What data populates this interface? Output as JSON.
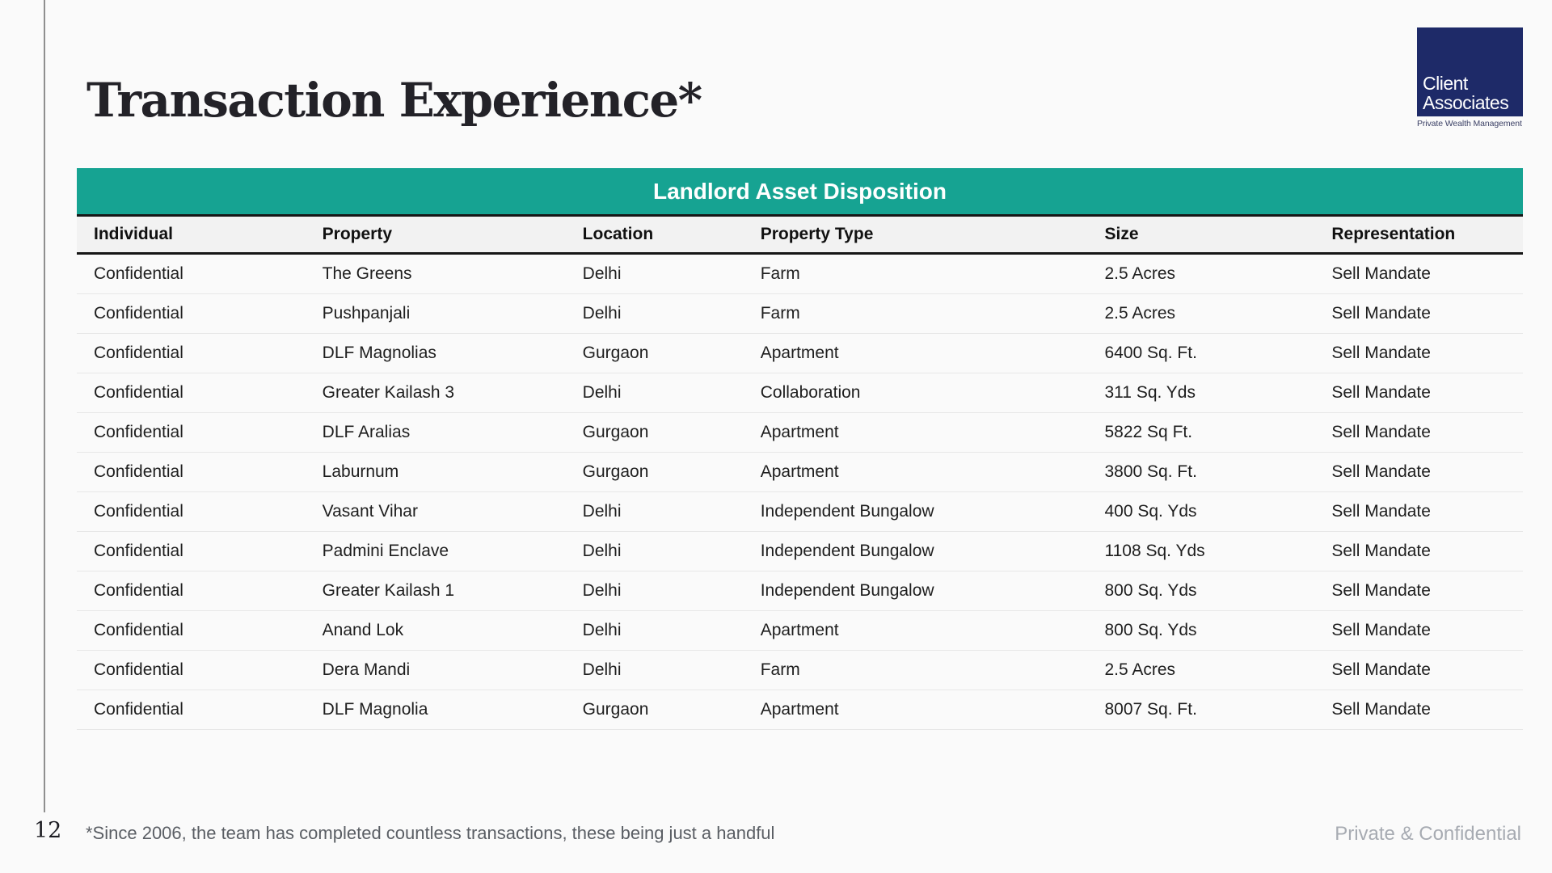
{
  "page": {
    "title": "Transaction Experience*",
    "page_number": "12",
    "footnote": "*Since 2006, the team has completed countless transactions, these being just a handful",
    "confidentiality": "Private & Confidential"
  },
  "logo": {
    "line1": "Client",
    "line2": "Associates",
    "tagline": "Private Wealth Management",
    "bg_color": "#1e2a68"
  },
  "table": {
    "title": "Landlord Asset Disposition",
    "title_bg_color": "#16a392",
    "columns": [
      "Individual",
      "Property",
      "Location",
      "Property Type",
      "Size",
      "Representation"
    ],
    "rows": [
      [
        "Confidential",
        "The Greens",
        "Delhi",
        "Farm",
        "2.5 Acres",
        "Sell Mandate"
      ],
      [
        "Confidential",
        "Pushpanjali",
        "Delhi",
        "Farm",
        "2.5 Acres",
        "Sell Mandate"
      ],
      [
        "Confidential",
        "DLF Magnolias",
        "Gurgaon",
        "Apartment",
        "6400 Sq. Ft.",
        "Sell Mandate"
      ],
      [
        "Confidential",
        "Greater Kailash 3",
        "Delhi",
        "Collaboration",
        "311 Sq. Yds",
        "Sell Mandate"
      ],
      [
        "Confidential",
        "DLF Aralias",
        "Gurgaon",
        "Apartment",
        "5822 Sq Ft.",
        "Sell Mandate"
      ],
      [
        "Confidential",
        "Laburnum",
        "Gurgaon",
        "Apartment",
        "3800 Sq. Ft.",
        "Sell Mandate"
      ],
      [
        "Confidential",
        "Vasant Vihar",
        "Delhi",
        "Independent Bungalow",
        "400 Sq. Yds",
        "Sell Mandate"
      ],
      [
        "Confidential",
        "Padmini Enclave",
        "Delhi",
        "Independent Bungalow",
        "1108 Sq. Yds",
        "Sell Mandate"
      ],
      [
        "Confidential",
        "Greater Kailash 1",
        "Delhi",
        "Independent Bungalow",
        "800 Sq. Yds",
        "Sell Mandate"
      ],
      [
        "Confidential",
        "Anand Lok",
        "Delhi",
        "Apartment",
        "800 Sq. Yds",
        "Sell Mandate"
      ],
      [
        "Confidential",
        "Dera Mandi",
        "Delhi",
        "Farm",
        "2.5 Acres",
        "Sell Mandate"
      ],
      [
        "Confidential",
        "DLF Magnolia",
        "Gurgaon",
        "Apartment",
        "8007 Sq. Ft.",
        "Sell Mandate"
      ]
    ]
  }
}
